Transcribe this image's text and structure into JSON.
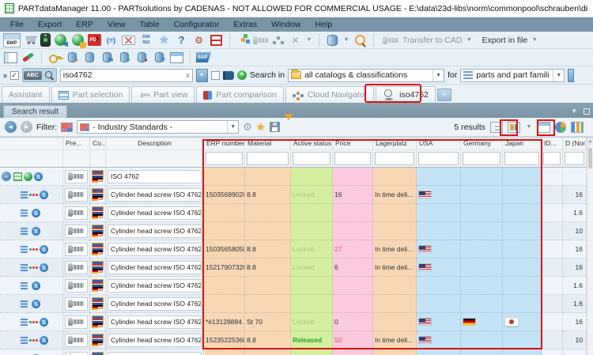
{
  "window": {
    "title": "PARTdataManager 11.00 - PARTsolutions by CADENAS - NOT ALLOWED FOR COMMERCIAL USAGE - E:\\data\\23d-libs\\norm\\commonpool\\schrauben\\din_en_iso_4762.prj"
  },
  "menu": {
    "items": [
      "File",
      "Export",
      "ERP",
      "View",
      "Table",
      "Configurator",
      "Extras",
      "Window",
      "Help"
    ]
  },
  "icons": {
    "bmp": "BMP",
    "pdf": "PDF",
    "variable": "(=)",
    "din": "DIN\n962",
    "star": "★",
    "help": "?",
    "gear": "⚙",
    "tools": "⚙",
    "mail": "✉",
    "abc": "ABC",
    "sap": "SAP",
    "s_badge": "S",
    "expand_minus": "−",
    "plus": "+",
    "dropdown": "▼",
    "back_arrow": "◄",
    "fwd_arrow": "►",
    "up_arrow": "▲",
    "chevrons": "»",
    "check": "✓",
    "clear_x": "x",
    "flag_count": "10"
  },
  "toolbar": {
    "transfer_to_cad": "Transfer to CAD",
    "export_in_file": "Export in file"
  },
  "search": {
    "query": "iso4762",
    "search_in_label": "Search in",
    "search_in_value": "all catalogs & classifications",
    "for_label": "for",
    "for_value": "parts and part families"
  },
  "tabs": {
    "items": [
      {
        "label": "Assistant",
        "icon": null,
        "active": false
      },
      {
        "label": "Part selection",
        "icon": "part-selection-icon",
        "active": false
      },
      {
        "label": "Part view",
        "icon": "part-view-icon",
        "active": false
      },
      {
        "label": "Part comparison",
        "icon": "part-comparison-icon",
        "active": false
      },
      {
        "label": "Cloud Navigator",
        "icon": "cloud-navigator-icon",
        "active": false
      },
      {
        "label": "iso4762",
        "icon": "abc-search-icon",
        "active": true
      }
    ],
    "add_tab": "+"
  },
  "panel": {
    "title": "Search result"
  },
  "filterbar": {
    "filter_label": "Filter:",
    "filter_value": "- Industry Standards -",
    "results_count": "5 results"
  },
  "table": {
    "columns": [
      {
        "key": "tree",
        "label": "",
        "filter": false
      },
      {
        "key": "preview",
        "label": "Pre...",
        "filter": false
      },
      {
        "key": "co",
        "label": "Co...",
        "filter": false
      },
      {
        "key": "desc",
        "label": "Description",
        "filter": false
      },
      {
        "key": "erp",
        "label": "ERP number",
        "filter": true
      },
      {
        "key": "material",
        "label": "Material",
        "filter": true
      },
      {
        "key": "active",
        "label": "Active status",
        "filter": true
      },
      {
        "key": "price",
        "label": "Price",
        "filter": true
      },
      {
        "key": "lager",
        "label": "Lagerplatz",
        "filter": true
      },
      {
        "key": "usa",
        "label": "USA",
        "filter": true
      },
      {
        "key": "germany",
        "label": "Germany",
        "filter": true
      },
      {
        "key": "japan",
        "label": "Japan",
        "filter": true
      },
      {
        "key": "id",
        "label": "ID...",
        "filter": true
      },
      {
        "key": "d",
        "label": "D (Nor",
        "filter": true
      }
    ],
    "rows": [
      {
        "type": "parent",
        "desc": "ISO 4762",
        "erp": "",
        "material": "",
        "status": "",
        "price": "",
        "price_red": false,
        "lager": "",
        "usa": false,
        "germany": false,
        "japan": false,
        "id": "",
        "d": ""
      },
      {
        "type": "erp",
        "desc": "Cylinder head screw ISO 4762 ...",
        "erp": "15035689020",
        "material": "8.8",
        "status": "Locked",
        "price": "16",
        "price_red": false,
        "lager": "In time deli...",
        "usa": true,
        "germany": false,
        "japan": false,
        "id": "",
        "d": "16"
      },
      {
        "type": "plain",
        "desc": "Cylinder head screw ISO 4762 ...",
        "erp": "",
        "material": "",
        "status": "",
        "price": "",
        "price_red": false,
        "lager": "",
        "usa": false,
        "germany": false,
        "japan": false,
        "id": "",
        "d": "1.6"
      },
      {
        "type": "plain",
        "desc": "Cylinder head screw ISO 4762 ...",
        "erp": "",
        "material": "",
        "status": "",
        "price": "",
        "price_red": false,
        "lager": "",
        "usa": false,
        "germany": false,
        "japan": false,
        "id": "",
        "d": "10"
      },
      {
        "type": "erp",
        "desc": "Cylinder head screw ISO 4762 ...",
        "erp": "15035658050",
        "material": "8.8",
        "status": "Locked",
        "price": "27",
        "price_red": true,
        "lager": "In time deli...",
        "usa": true,
        "germany": false,
        "japan": false,
        "id": "",
        "d": "16"
      },
      {
        "type": "erp",
        "desc": "Cylinder head screw ISO 4762 ...",
        "erp": "15217907320",
        "material": "8.8",
        "status": "Locked",
        "price": "6",
        "price_red": false,
        "lager": "In time deli...",
        "usa": true,
        "germany": false,
        "japan": false,
        "id": "",
        "d": "16"
      },
      {
        "type": "plain",
        "desc": "Cylinder head screw ISO 4762 ...",
        "erp": "",
        "material": "",
        "status": "",
        "price": "",
        "price_red": false,
        "lager": "",
        "usa": false,
        "germany": false,
        "japan": false,
        "id": "",
        "d": "1.6"
      },
      {
        "type": "plain",
        "desc": "Cylinder head screw ISO 4762 ...",
        "erp": "",
        "material": "",
        "status": "",
        "price": "",
        "price_red": false,
        "lager": "",
        "usa": false,
        "germany": false,
        "japan": false,
        "id": "",
        "d": "1.6"
      },
      {
        "type": "erp",
        "desc": "Cylinder head screw ISO 4762 ...",
        "erp": "*#13128884...",
        "material": "St 70",
        "status": "Locked",
        "price": "0",
        "price_red": false,
        "lager": "",
        "usa": true,
        "germany": true,
        "japan": true,
        "id": "",
        "d": "16"
      },
      {
        "type": "erp",
        "desc": "Cylinder head screw ISO 4762 ...",
        "erp": "15235225360",
        "material": "8.8",
        "status": "Released",
        "price": "50",
        "price_red": true,
        "lager": "In time deli...",
        "usa": true,
        "germany": false,
        "japan": false,
        "id": "",
        "d": "10"
      },
      {
        "type": "plain",
        "desc": "Cylinder head screw ISO 4762 ...",
        "erp": "",
        "material": "",
        "status": "",
        "price": "",
        "price_red": false,
        "lager": "",
        "usa": false,
        "germany": false,
        "japan": false,
        "id": "",
        "d": ""
      }
    ]
  }
}
